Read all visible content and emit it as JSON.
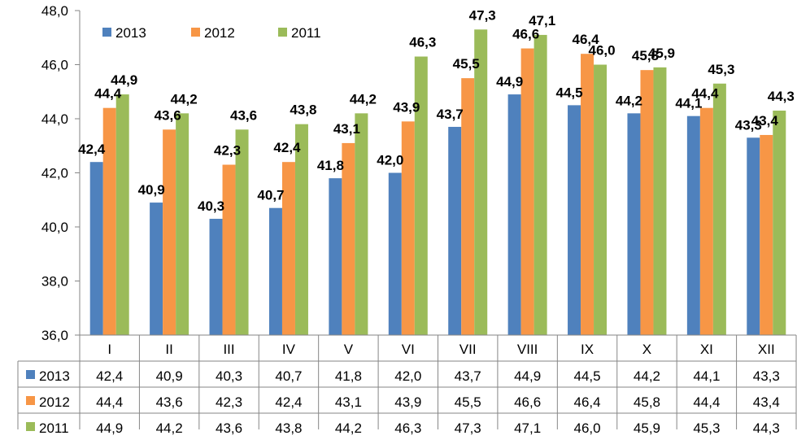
{
  "chart_data": {
    "type": "bar",
    "categories": [
      "I",
      "II",
      "III",
      "IV",
      "V",
      "VI",
      "VII",
      "VIII",
      "IX",
      "X",
      "XI",
      "XII"
    ],
    "series": [
      {
        "name": "2013",
        "color": "#4f81bd",
        "values": [
          42.4,
          40.9,
          40.3,
          40.7,
          41.8,
          42.0,
          43.7,
          44.9,
          44.5,
          44.2,
          44.1,
          43.3
        ],
        "labels": [
          "42,4",
          "40,9",
          "40,3",
          "40,7",
          "41,8",
          "42,0",
          "43,7",
          "44,9",
          "44,5",
          "44,2",
          "44,1",
          "43,3"
        ]
      },
      {
        "name": "2012",
        "color": "#f79646",
        "values": [
          44.4,
          43.6,
          42.3,
          42.4,
          43.1,
          43.9,
          45.5,
          46.6,
          46.4,
          45.8,
          44.4,
          43.4
        ],
        "labels": [
          "44,4",
          "43,6",
          "42,3",
          "42,4",
          "43,1",
          "43,9",
          "45,5",
          "46,6",
          "46,4",
          "45,8",
          "44,4",
          "43,4"
        ]
      },
      {
        "name": "2011",
        "color": "#9bbb59",
        "values": [
          44.9,
          44.2,
          43.6,
          43.8,
          44.2,
          46.3,
          47.3,
          47.1,
          46.0,
          45.9,
          45.3,
          44.3
        ],
        "labels": [
          "44,9",
          "44,2",
          "43,6",
          "43,8",
          "44,2",
          "46,3",
          "47,3",
          "47,1",
          "46,0",
          "45,9",
          "45,3",
          "44,3"
        ]
      }
    ],
    "ylim": [
      36.0,
      48.0
    ],
    "yticks": [
      "36,0",
      "38,0",
      "40,0",
      "42,0",
      "44,0",
      "46,0",
      "48,0"
    ],
    "legend_position": "top-left",
    "data_table": true,
    "grid": false
  }
}
